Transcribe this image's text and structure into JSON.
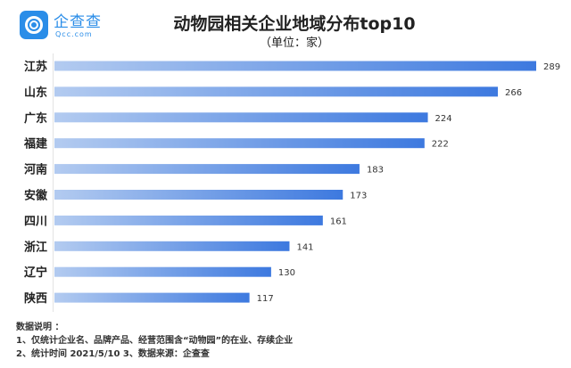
{
  "logo": {
    "cn": "企查查",
    "en": "Qcc.com"
  },
  "chart_data": {
    "type": "bar",
    "orientation": "horizontal",
    "title": "动物园相关企业地域分布top10",
    "subtitle": "（单位：家）",
    "categories": [
      "江苏",
      "山东",
      "广东",
      "福建",
      "河南",
      "安徽",
      "四川",
      "浙江",
      "辽宁",
      "陕西"
    ],
    "values": [
      289,
      266,
      224,
      222,
      183,
      173,
      161,
      141,
      130,
      117
    ],
    "xlim": [
      0,
      289
    ],
    "grid": false,
    "colors": {
      "bar_start": "#b3cbf0",
      "bar_end": "#3d79df",
      "brand": "#2a8de8"
    }
  },
  "notes": {
    "heading": "数据说明 ：",
    "line1": "1、仅统计企业名、品牌产品、经营范围含“动物园”的在业、存续企业",
    "line2": "2、统计时间 2021/5/10      3、数据来源：企查查"
  }
}
